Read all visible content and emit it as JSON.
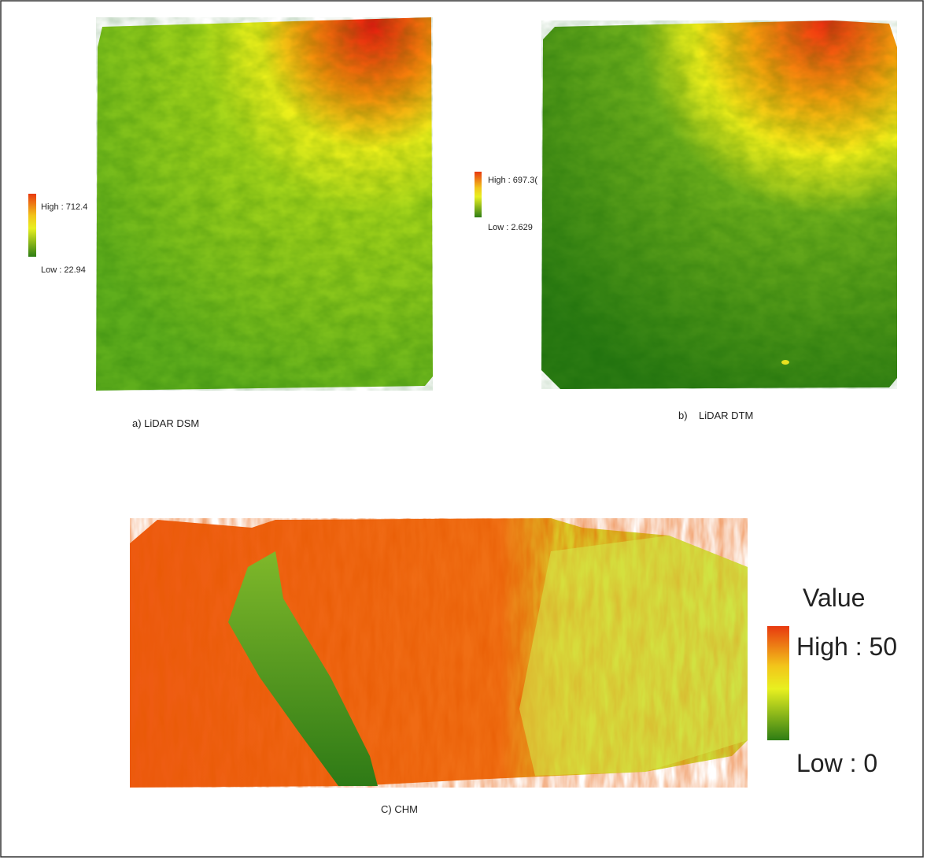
{
  "panels": [
    {
      "caption": "a) LiDAR DSM",
      "legend": {
        "high": "High : 712.4",
        "low": "Low : 22.94"
      }
    },
    {
      "caption": "b)    LiDAR DTM",
      "legend": {
        "high": "High : 697.3(",
        "low": "Low : 2.629"
      }
    },
    {
      "caption": "C) CHM",
      "legend": {
        "title": "Value",
        "high": "High : 50",
        "low": "Low : 0"
      }
    }
  ]
}
